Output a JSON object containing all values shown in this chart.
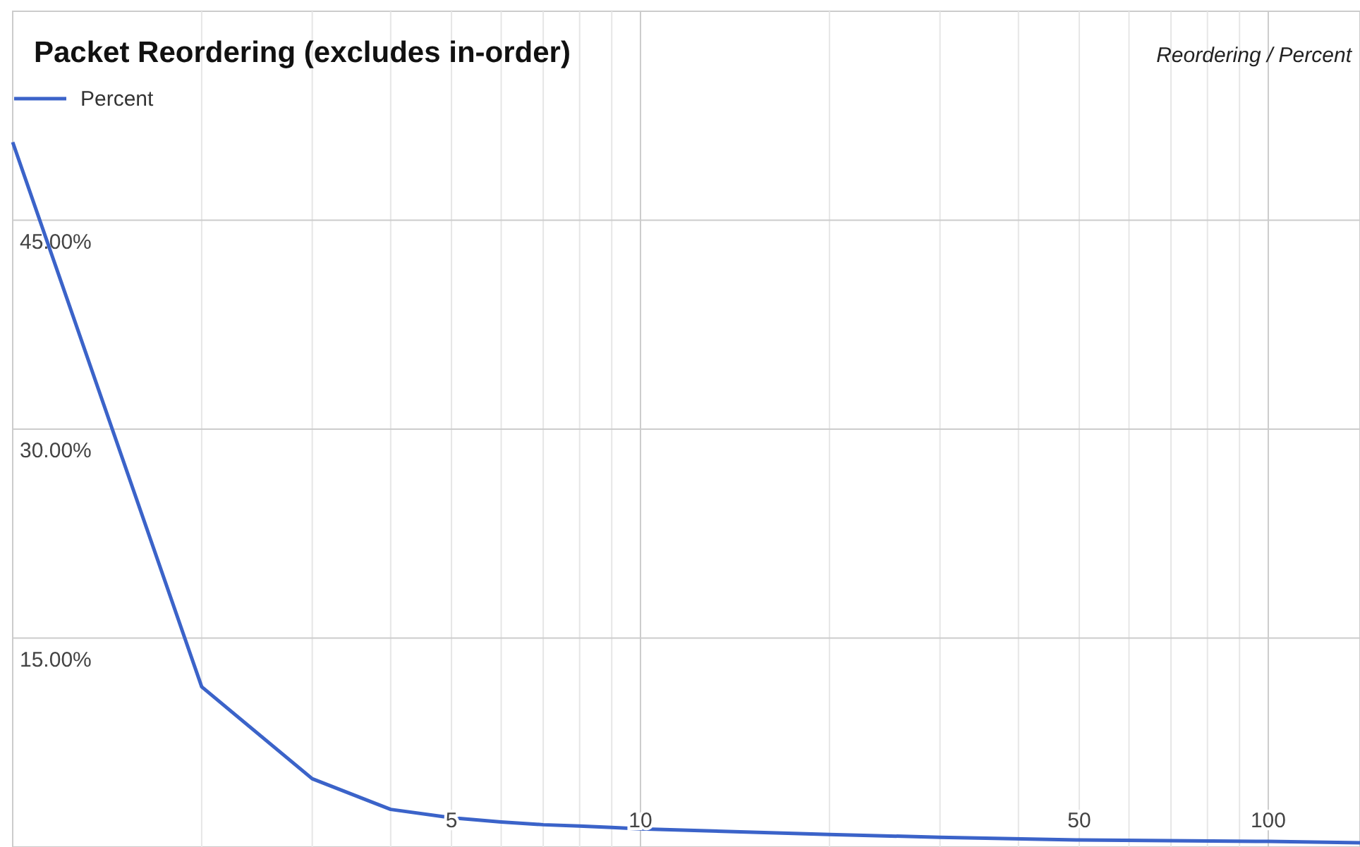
{
  "chart_data": {
    "type": "line",
    "title": "Packet Reordering (excludes in-order)",
    "annotations": [
      "Reordering / Percent"
    ],
    "x": [
      1,
      2,
      3,
      4,
      5,
      6,
      7,
      8,
      9,
      10,
      20,
      30,
      50,
      100,
      140
    ],
    "series": [
      {
        "name": "Percent",
        "color": "#3b63c9",
        "values": [
          50.6,
          11.5,
          4.9,
          2.7,
          2.1,
          1.8,
          1.6,
          1.5,
          1.4,
          1.3,
          0.9,
          0.7,
          0.5,
          0.4,
          0.3
        ]
      }
    ],
    "xlim": [
      1,
      140
    ],
    "ylim": [
      0,
      60
    ],
    "log": "x",
    "xticks": [
      {
        "value": 2,
        "label": null
      },
      {
        "value": 3,
        "label": null
      },
      {
        "value": 4,
        "label": null
      },
      5,
      {
        "value": 6,
        "label": null
      },
      {
        "value": 7,
        "label": null
      },
      {
        "value": 8,
        "label": null
      },
      {
        "value": 9,
        "label": null
      },
      10,
      {
        "value": 20,
        "label": null
      },
      {
        "value": 30,
        "label": null
      },
      {
        "value": 40,
        "label": null
      },
      50,
      {
        "value": 60,
        "label": null
      },
      {
        "value": 70,
        "label": null
      },
      {
        "value": 80,
        "label": null
      },
      {
        "value": 90,
        "label": null
      },
      100
    ],
    "yticks": [
      {
        "value": 15,
        "label": "15.00%"
      },
      {
        "value": 30,
        "label": "30.00%"
      },
      {
        "value": 45,
        "label": "45.00%"
      }
    ],
    "grid": true,
    "legend": "top left",
    "marker": "none",
    "line_style": "solid"
  }
}
